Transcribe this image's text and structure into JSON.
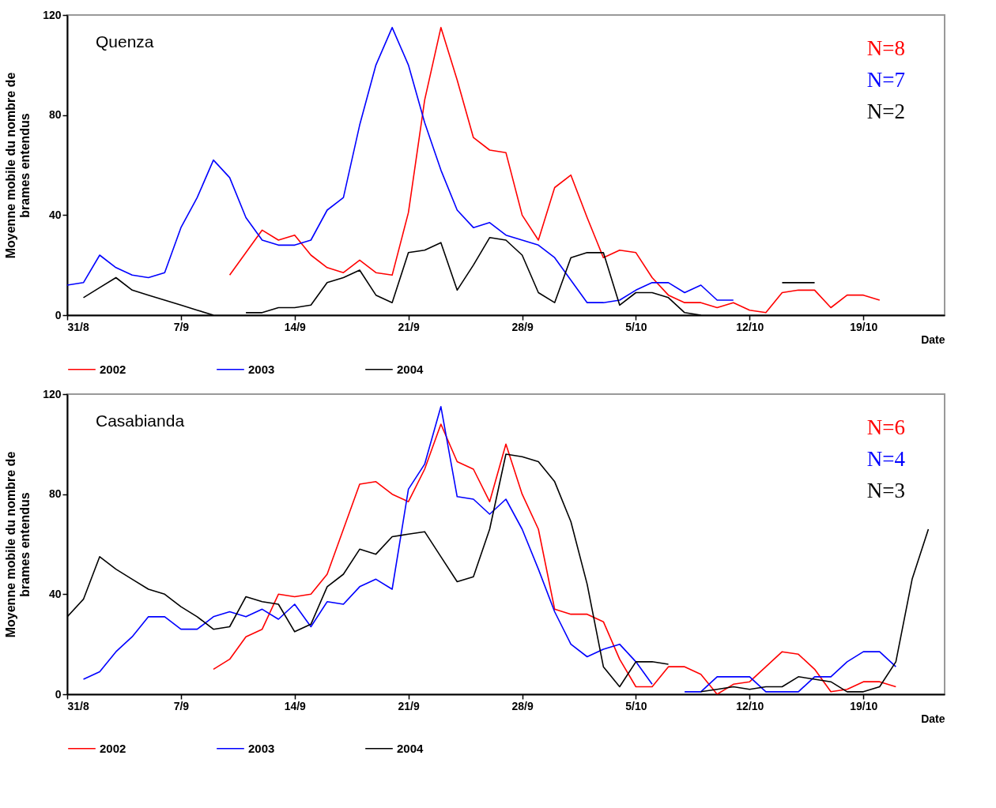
{
  "chart_data": [
    {
      "type": "line",
      "title": "Quenza",
      "xlabel": "Date",
      "ylabel": "Moyenne mobile du nombre de brames entendus",
      "x": [
        "--08-31",
        "--09-01",
        "--09-02",
        "--09-03",
        "--09-04",
        "--09-05",
        "--09-06",
        "--09-07",
        "--09-08",
        "--09-09",
        "--09-10",
        "--09-11",
        "--09-12",
        "--09-13",
        "--09-14",
        "--09-15",
        "--09-16",
        "--09-17",
        "--09-18",
        "--09-19",
        "--09-20",
        "--09-21",
        "--09-22",
        "--09-23",
        "--09-24",
        "--09-25",
        "--09-26",
        "--09-27",
        "--09-28",
        "--09-29",
        "--09-30",
        "--10-01",
        "--10-02",
        "--10-03",
        "--10-04",
        "--10-05",
        "--10-06",
        "--10-07",
        "--10-08",
        "--10-09",
        "--10-10",
        "--10-11",
        "--10-12",
        "--10-13",
        "--10-14",
        "--10-15",
        "--10-16",
        "--10-17",
        "--10-18",
        "--10-19",
        "--10-20"
      ],
      "xlim": [
        "--08-31",
        "--10-24"
      ],
      "ylim": [
        0,
        120
      ],
      "yticks": [
        0,
        40,
        80,
        120
      ],
      "xticks": [
        {
          "value": "--08-31",
          "label": "31/8"
        },
        {
          "value": "--09-07",
          "label": "7/9"
        },
        {
          "value": "--09-14",
          "label": "14/9"
        },
        {
          "value": "--09-21",
          "label": "21/9"
        },
        {
          "value": "--09-28",
          "label": "28/9"
        },
        {
          "value": "--10-05",
          "label": "5/10"
        },
        {
          "value": "--10-12",
          "label": "12/10"
        },
        {
          "value": "--10-19",
          "label": "19/10"
        }
      ],
      "grid": false,
      "legend": "bottom",
      "annotations": [
        "N=8",
        "N=7",
        "N=2"
      ],
      "series": [
        {
          "name": "2002",
          "color": "#ff0000",
          "values": [
            null,
            null,
            null,
            null,
            null,
            null,
            null,
            null,
            null,
            null,
            16,
            25,
            34,
            30,
            32,
            24,
            19,
            17,
            22,
            17,
            16,
            41,
            86,
            115,
            94,
            71,
            66,
            65,
            40,
            30,
            51,
            56,
            39,
            23,
            26,
            25,
            15,
            8,
            5,
            5,
            3,
            5,
            2,
            1,
            9,
            10,
            10,
            3,
            8,
            8,
            6
          ]
        },
        {
          "name": "2003",
          "color": "#0000ff",
          "values": [
            12,
            13,
            24,
            19,
            16,
            15,
            17,
            35,
            47,
            62,
            55,
            39,
            30,
            28,
            28,
            30,
            42,
            47,
            76,
            100,
            115,
            100,
            77,
            58,
            42,
            35,
            37,
            32,
            30,
            28,
            23,
            14,
            5,
            5,
            6,
            10,
            13,
            13,
            9,
            12,
            6,
            6,
            null,
            null,
            null,
            null,
            null,
            null,
            null,
            null,
            null
          ]
        },
        {
          "name": "2004",
          "color": "#000000",
          "values": [
            null,
            7,
            11,
            15,
            10,
            8,
            6,
            4,
            2,
            0,
            null,
            1,
            1,
            3,
            3,
            4,
            13,
            15,
            18,
            8,
            5,
            25,
            26,
            29,
            10,
            20,
            31,
            30,
            24,
            9,
            5,
            23,
            25,
            25,
            4,
            9,
            9,
            7,
            1,
            0,
            null,
            null,
            null,
            null,
            13,
            13,
            13,
            null,
            null,
            null,
            null
          ]
        }
      ]
    },
    {
      "type": "line",
      "title": "Casabianda",
      "xlabel": "Date",
      "ylabel": "Moyenne mobile du nombre de brames entendus",
      "x": [
        "--08-31",
        "--09-01",
        "--09-02",
        "--09-03",
        "--09-04",
        "--09-05",
        "--09-06",
        "--09-07",
        "--09-08",
        "--09-09",
        "--09-10",
        "--09-11",
        "--09-12",
        "--09-13",
        "--09-14",
        "--09-15",
        "--09-16",
        "--09-17",
        "--09-18",
        "--09-19",
        "--09-20",
        "--09-21",
        "--09-22",
        "--09-23",
        "--09-24",
        "--09-25",
        "--09-26",
        "--09-27",
        "--09-28",
        "--09-29",
        "--09-30",
        "--10-01",
        "--10-02",
        "--10-03",
        "--10-04",
        "--10-05",
        "--10-06",
        "--10-07",
        "--10-08",
        "--10-09",
        "--10-10",
        "--10-11",
        "--10-12",
        "--10-13",
        "--10-14",
        "--10-15",
        "--10-16",
        "--10-17",
        "--10-18",
        "--10-19",
        "--10-20",
        "--10-21",
        "--10-22",
        "--10-23"
      ],
      "xlim": [
        "--08-31",
        "--10-24"
      ],
      "ylim": [
        0,
        120
      ],
      "yticks": [
        0,
        40,
        80,
        120
      ],
      "xticks": [
        {
          "value": "--08-31",
          "label": "31/8"
        },
        {
          "value": "--09-07",
          "label": "7/9"
        },
        {
          "value": "--09-14",
          "label": "14/9"
        },
        {
          "value": "--09-21",
          "label": "21/9"
        },
        {
          "value": "--09-28",
          "label": "28/9"
        },
        {
          "value": "--10-05",
          "label": "5/10"
        },
        {
          "value": "--10-12",
          "label": "12/10"
        },
        {
          "value": "--10-19",
          "label": "19/10"
        }
      ],
      "grid": false,
      "legend": "bottom",
      "annotations": [
        "N=6",
        "N=4",
        "N=3"
      ],
      "series": [
        {
          "name": "2002",
          "color": "#ff0000",
          "values": [
            null,
            null,
            null,
            null,
            null,
            null,
            null,
            null,
            null,
            10,
            14,
            23,
            26,
            40,
            39,
            40,
            48,
            66,
            84,
            85,
            80,
            77,
            90,
            108,
            93,
            90,
            77,
            100,
            80,
            66,
            34,
            32,
            32,
            29,
            14,
            3,
            3,
            11,
            11,
            8,
            0,
            4,
            5,
            11,
            17,
            16,
            10,
            1,
            2,
            5,
            5,
            3,
            null,
            null
          ]
        },
        {
          "name": "2003",
          "color": "#0000ff",
          "values": [
            null,
            6,
            9,
            17,
            23,
            31,
            31,
            26,
            26,
            31,
            33,
            31,
            34,
            30,
            36,
            27,
            37,
            36,
            43,
            46,
            42,
            82,
            92,
            115,
            79,
            78,
            72,
            78,
            66,
            50,
            33,
            20,
            15,
            18,
            20,
            13,
            4,
            null,
            1,
            1,
            7,
            7,
            7,
            1,
            1,
            1,
            7,
            7,
            13,
            17,
            17,
            11,
            null,
            null
          ]
        },
        {
          "name": "2004",
          "color": "#000000",
          "values": [
            31,
            38,
            55,
            50,
            46,
            42,
            40,
            35,
            31,
            26,
            27,
            39,
            37,
            36,
            25,
            28,
            43,
            48,
            58,
            56,
            63,
            64,
            65,
            55,
            45,
            47,
            66,
            96,
            95,
            93,
            85,
            69,
            44,
            11,
            3,
            13,
            13,
            12,
            null,
            1,
            2,
            3,
            2,
            3,
            3,
            7,
            6,
            5,
            1,
            1,
            3,
            13,
            46,
            66
          ]
        }
      ]
    }
  ]
}
